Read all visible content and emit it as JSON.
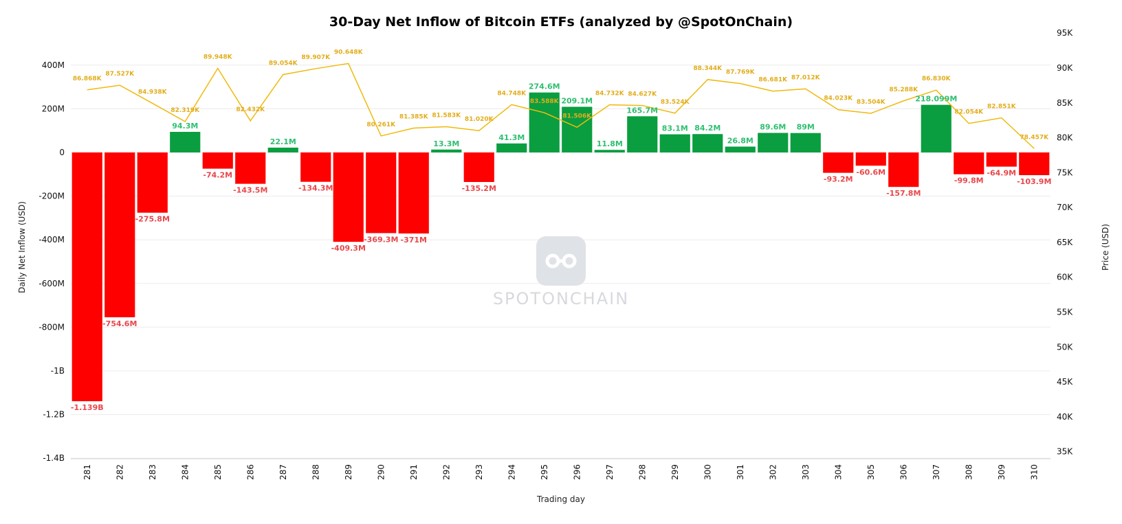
{
  "colors": {
    "positive_bar": "#0a9e40",
    "negative_bar": "#ff0000",
    "price_line": "#f0b90b",
    "grid": "#ececec"
  },
  "watermark": {
    "text": "SPOTONCHAIN",
    "icon": "spotonchain-logo-icon"
  },
  "chart_data": {
    "type": "bar",
    "title": "30-Day Net Inflow of Bitcoin ETFs (analyzed by @SpotOnChain)",
    "xlabel": "Trading day",
    "ylabel": "Daily Net Inflow (USD)",
    "y2label": "Price (USD)",
    "categories": [
      281,
      282,
      283,
      284,
      285,
      286,
      287,
      288,
      289,
      290,
      291,
      292,
      293,
      294,
      295,
      296,
      297,
      298,
      299,
      300,
      301,
      302,
      303,
      304,
      305,
      306,
      307,
      308,
      309,
      310
    ],
    "x_tick_labels": [
      "281",
      "282",
      "283",
      "284",
      "285",
      "286",
      "287",
      "288",
      "289",
      "290",
      "291",
      "292",
      "293",
      "294",
      "295",
      "296",
      "297",
      "298",
      "299",
      "300",
      "301",
      "302",
      "303",
      "304",
      "305",
      "306",
      "307",
      "308",
      "309",
      "310"
    ],
    "ylim": [
      -1400000000,
      450000000
    ],
    "y_ticks": [
      400000000,
      200000000,
      0,
      -200000000,
      -400000000,
      -600000000,
      -800000000,
      -1000000000,
      -1200000000,
      -1400000000
    ],
    "y_tick_labels": [
      "400M",
      "200M",
      "0",
      "-200M",
      "-400M",
      "-600M",
      "-800M",
      "-1B",
      "-1.2B",
      "-1.4B"
    ],
    "y2lim": [
      33000,
      95500
    ],
    "y2_ticks": [
      95000,
      90000,
      85000,
      80000,
      75000,
      70000,
      65000,
      60000,
      55000,
      50000,
      45000,
      40000,
      35000
    ],
    "y2_tick_labels": [
      "95K",
      "90K",
      "85K",
      "80K",
      "75K",
      "70K",
      "65K",
      "60K",
      "55K",
      "50K",
      "45K",
      "40K",
      "35K"
    ],
    "grid": true,
    "series": [
      {
        "type": "bar",
        "values": [
          -1139000000,
          -754600000,
          -275800000,
          94300000,
          -74200000,
          -143500000,
          22100000,
          -134300000,
          -409300000,
          -369300000,
          -371000000,
          13300000,
          -135200000,
          41300000,
          274600000,
          209100000,
          11800000,
          165700000,
          83100000,
          84200000,
          26800000,
          89600000,
          89000000,
          -93200000,
          -60600000,
          -157800000,
          218099000,
          -99800000,
          -64900000,
          -103900000
        ],
        "labels": [
          "-1.139B",
          "-754.6M",
          "-275.8M",
          "94.3M",
          "-74.2M",
          "-143.5M",
          "22.1M",
          "-134.3M",
          "-409.3M",
          "-369.3M",
          "-371M",
          "13.3M",
          "-135.2M",
          "41.3M",
          "274.6M",
          "209.1M",
          "11.8M",
          "165.7M",
          "83.1M",
          "84.2M",
          "26.8M",
          "89.6M",
          "89M",
          "-93.2M",
          "-60.6M",
          "-157.8M",
          "218.099M",
          "-99.8M",
          "-64.9M",
          "-103.9M"
        ]
      },
      {
        "type": "line",
        "axis": "y2",
        "values": [
          86868,
          87527,
          84938,
          82319,
          89948,
          82432,
          89054,
          89907,
          90648,
          80261,
          81385,
          81583,
          81020,
          84748,
          83588,
          81506,
          84732,
          84627,
          83524,
          88344,
          87769,
          86681,
          87012,
          84023,
          83504,
          85288,
          86830,
          82054,
          82851,
          78457
        ],
        "labels": [
          "86.868K",
          "87.527K",
          "84.938K",
          "82.319K",
          "89.948K",
          "82.432K",
          "89.054K",
          "89.907K",
          "90.648K",
          "80.261K",
          "81.385K",
          "81.583K",
          "81.020K",
          "84.748K",
          "83.588K",
          "81.506K",
          "84.732K",
          "84.627K",
          "83.524K",
          "88.344K",
          "87.769K",
          "86.681K",
          "87.012K",
          "84.023K",
          "83.504K",
          "85.288K",
          "86.830K",
          "82.054K",
          "82.851K",
          "78.457K"
        ]
      }
    ]
  }
}
